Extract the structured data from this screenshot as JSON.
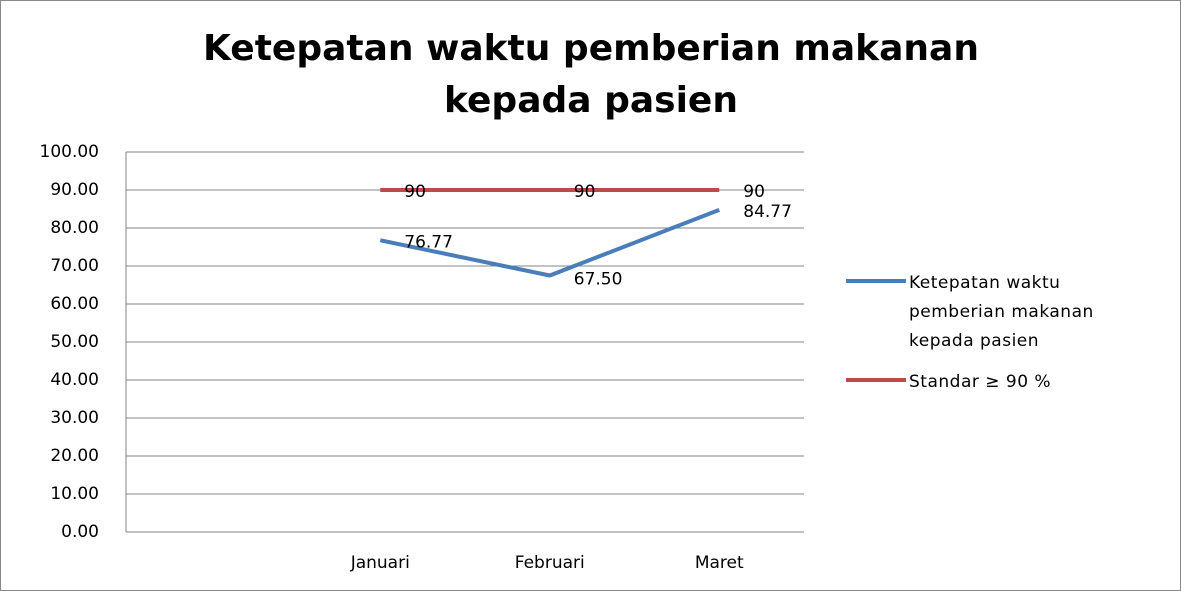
{
  "chart_data": {
    "type": "line",
    "title": "Ketepatan waktu pemberian makanan kepada pasien",
    "categories": [
      null,
      "Januari",
      "Februari",
      "Maret"
    ],
    "series": [
      {
        "name": "Ketepatan waktu pemberian makanan kepada pasien",
        "color": "#4a7ebb",
        "values": [
          null,
          76.77,
          67.5,
          84.77
        ],
        "value_labels": [
          null,
          "76.77",
          "67.50",
          "84.77"
        ]
      },
      {
        "name": "Standar ≥ 90 %",
        "color": "#be4b48",
        "values": [
          null,
          90,
          90,
          90
        ]
      }
    ],
    "ylim": [
      0,
      100
    ],
    "yticks": [
      {
        "value": 0,
        "label": "0.00"
      },
      {
        "value": 10,
        "label": "10.00"
      },
      {
        "value": 20,
        "label": "20.00"
      },
      {
        "value": 30,
        "label": "30.00"
      },
      {
        "value": 40,
        "label": "40.00"
      },
      {
        "value": 50,
        "label": "50.00"
      },
      {
        "value": 60,
        "label": "60.00"
      },
      {
        "value": 70,
        "label": "70.00"
      },
      {
        "value": 80,
        "label": "80.00"
      },
      {
        "value": 90,
        "label": "90.00"
      },
      {
        "value": 100,
        "label": "100.00"
      }
    ],
    "grid": true,
    "legend": "right"
  }
}
